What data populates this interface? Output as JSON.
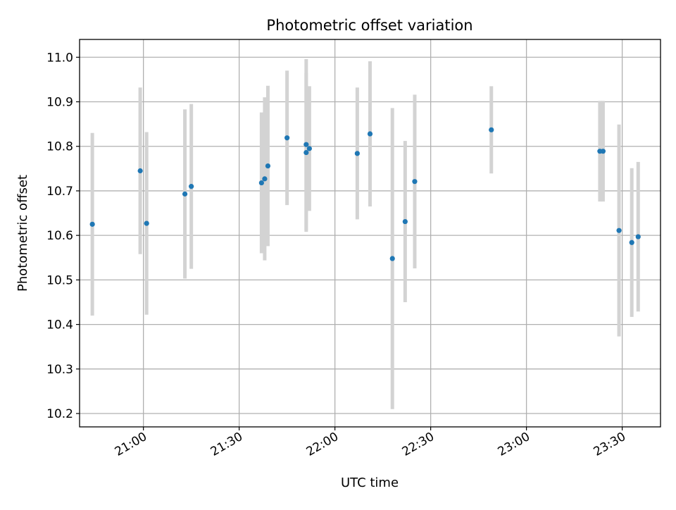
{
  "chart_data": {
    "type": "scatter",
    "title": "Photometric offset variation",
    "xlabel": "UTC time",
    "ylabel": "Photometric offset",
    "x_axis_type": "time",
    "xlim": [
      "20:40",
      "23:42"
    ],
    "ylim": [
      10.17,
      11.04
    ],
    "x_ticks": [
      "21:00",
      "21:30",
      "22:00",
      "22:30",
      "23:00",
      "23:30"
    ],
    "y_ticks": [
      10.2,
      10.3,
      10.4,
      10.5,
      10.6,
      10.7,
      10.8,
      10.9,
      11.0
    ],
    "y_tick_labels": [
      "10.2",
      "10.3",
      "10.4",
      "10.5",
      "10.6",
      "10.7",
      "10.8",
      "10.9",
      "11.0"
    ],
    "grid": true,
    "legend": "none",
    "colors": {
      "marker": "#1f77b4",
      "error_bar": "#d3d3d3",
      "grid": "#b0b0b0"
    },
    "points": [
      {
        "x": "20:44",
        "y": 10.625,
        "yerr": 0.205
      },
      {
        "x": "20:59",
        "y": 10.745,
        "yerr": 0.187
      },
      {
        "x": "21:01",
        "y": 10.627,
        "yerr": 0.205
      },
      {
        "x": "21:13",
        "y": 10.693,
        "yerr": 0.19
      },
      {
        "x": "21:15",
        "y": 10.71,
        "yerr": 0.185
      },
      {
        "x": "21:37",
        "y": 10.718,
        "yerr": 0.158
      },
      {
        "x": "21:38",
        "y": 10.727,
        "yerr": 0.183
      },
      {
        "x": "21:39",
        "y": 10.756,
        "yerr": 0.18
      },
      {
        "x": "21:45",
        "y": 10.819,
        "yerr": 0.151
      },
      {
        "x": "21:51",
        "y": 10.804,
        "yerr": 0.192
      },
      {
        "x": "21:51",
        "y": 10.786,
        "yerr": 0.178
      },
      {
        "x": "21:52",
        "y": 10.795,
        "yerr": 0.14
      },
      {
        "x": "22:07",
        "y": 10.784,
        "yerr": 0.148
      },
      {
        "x": "22:11",
        "y": 10.828,
        "yerr": 0.163
      },
      {
        "x": "22:18",
        "y": 10.548,
        "yerr": 0.338
      },
      {
        "x": "22:22",
        "y": 10.631,
        "yerr": 0.181
      },
      {
        "x": "22:25",
        "y": 10.721,
        "yerr": 0.195
      },
      {
        "x": "22:49",
        "y": 10.837,
        "yerr": 0.098
      },
      {
        "x": "23:23",
        "y": 10.789,
        "yerr": 0.113
      },
      {
        "x": "23:24",
        "y": 10.789,
        "yerr": 0.113
      },
      {
        "x": "23:29",
        "y": 10.611,
        "yerr": 0.238
      },
      {
        "x": "23:33",
        "y": 10.584,
        "yerr": 0.167
      },
      {
        "x": "23:35",
        "y": 10.597,
        "yerr": 0.168
      }
    ]
  }
}
